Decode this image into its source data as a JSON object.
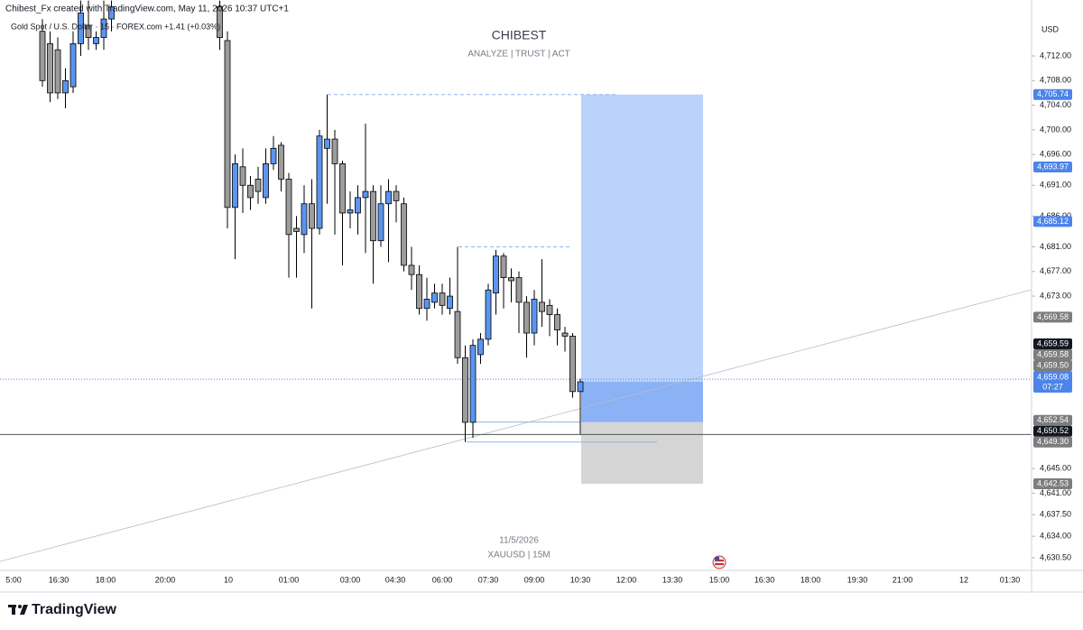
{
  "header": {
    "credit": "Chibest_Fx created with TradingView.com, May 11, 2026 10:37 UTC+1",
    "symbol": "Gold Spot / U.S. Dollar · 15 · FOREX.com  +1.41 (+0.03%)",
    "currency": "USD",
    "brand": "TradingView"
  },
  "chart_data": {
    "type": "candlestick",
    "title": "CHIBEST",
    "subtitle": "ANALYZE | TRUST | ACT",
    "watermark_date": "11/5/2026",
    "watermark_symbol": "XAUUSD | 15M",
    "up_color": "#5b95ef",
    "down_color": "#9c9c9c",
    "ylim": [
      4628.45,
      4721.09
    ],
    "yticks": [
      {
        "value": 4712,
        "label": "4,712.00"
      },
      {
        "value": 4708,
        "label": "4,708.00"
      },
      {
        "value": 4704,
        "label": "4,704.00"
      },
      {
        "value": 4700,
        "label": "4,700.00"
      },
      {
        "value": 4696,
        "label": "4,696.00"
      },
      {
        "value": 4691,
        "label": "4,691.00"
      },
      {
        "value": 4686,
        "label": "4,686.00"
      },
      {
        "value": 4681,
        "label": "4,681.00"
      },
      {
        "value": 4677,
        "label": "4,677.00"
      },
      {
        "value": 4673,
        "label": "4,673.00"
      },
      {
        "value": 4645,
        "label": "4,645.00"
      },
      {
        "value": 4641,
        "label": "4,641.00"
      },
      {
        "value": 4637.5,
        "label": "4,637.50"
      },
      {
        "value": 4634,
        "label": "4,634.00"
      },
      {
        "value": 4630.5,
        "label": "4,630.50"
      }
    ],
    "xticks": [
      "5:00",
      "16:30",
      "18:00",
      "20:00",
      "10",
      "01:00",
      "03:00",
      "04:30",
      "06:00",
      "07:30",
      "09:00",
      "10:30",
      "12:00",
      "13:30",
      "15:00",
      "16:30",
      "18:00",
      "19:30",
      "21:00",
      "12",
      "01:30"
    ],
    "open": [
      4716,
      4714,
      4713,
      4706,
      4707,
      4714,
      4717,
      4714,
      4715,
      4718,
      4720,
      4714.5,
      4687.4,
      4694,
      4691,
      4692,
      4689,
      4694.5,
      4697.5,
      4692,
      4684,
      4683,
      4688,
      4684,
      4697,
      4698.5,
      4694.5,
      4686.5,
      4686.5,
      4689,
      4690,
      4682,
      4688,
      4690,
      4688,
      4678,
      4676.5,
      4671,
      4672,
      4673.5,
      4671,
      4670.5,
      4663,
      4652.5,
      4663.5,
      4666,
      4673.5,
      4679.5,
      4676,
      4676,
      4672,
      4667,
      4672,
      4671.5,
      4670,
      4667,
      4666.5,
      4657.5
    ],
    "high": [
      4718,
      4716,
      4715,
      4710,
      4716,
      4721,
      4721,
      4716,
      4721,
      4721,
      4721,
      4716,
      4696,
      4697,
      4692.5,
      4694,
      4697,
      4699,
      4698,
      4693,
      4686,
      4691,
      4692,
      4700,
      4705.74,
      4700,
      4695,
      4690,
      4691,
      4701,
      4691,
      4691,
      4692,
      4691,
      4689,
      4681,
      4678,
      4676,
      4675,
      4675,
      4676,
      4681,
      4665,
      4666,
      4667,
      4675,
      4680.5,
      4680,
      4677.5,
      4677,
      4673,
      4674,
      4679,
      4672.5,
      4671,
      4668,
      4667,
      4659.59
    ],
    "low": [
      4707,
      4704.5,
      4705,
      4703.5,
      4706,
      4712,
      4713,
      4713,
      4713,
      4716,
      4713,
      4684,
      4679,
      4686.5,
      4687,
      4688,
      4688,
      4693.5,
      4690,
      4676,
      4676,
      4680,
      4671,
      4683,
      4688,
      4683,
      4678,
      4684,
      4683,
      4680,
      4675,
      4681,
      4678.5,
      4685,
      4677,
      4674,
      4670,
      4669,
      4671,
      4670,
      4670,
      4662,
      4649.3,
      4650,
      4662,
      4665,
      4670,
      4671,
      4672,
      4667,
      4663,
      4665,
      4668,
      4666.5,
      4665,
      4664,
      4656.5,
      4650.52
    ],
    "close": [
      4708,
      4706,
      4706,
      4708,
      4714,
      4719,
      4715,
      4715,
      4718,
      4720,
      4715,
      4687.4,
      4694.5,
      4691,
      4689,
      4690,
      4694.5,
      4697,
      4692,
      4683,
      4683.5,
      4688,
      4684,
      4699,
      4698.5,
      4694.5,
      4686.5,
      4687,
      4689,
      4690,
      4682,
      4688,
      4690,
      4688.5,
      4678,
      4676.5,
      4671,
      4672.5,
      4673.5,
      4671.5,
      4673,
      4663,
      4652.5,
      4665,
      4666,
      4674,
      4679.5,
      4676,
      4675.5,
      4672,
      4667,
      4672.5,
      4670.5,
      4670,
      4667.5,
      4666.5,
      4657.5,
      4659.08
    ],
    "price_labels": [
      {
        "value": 4705.74,
        "label": "4,705.74",
        "color": "#4c84ea"
      },
      {
        "value": 4693.97,
        "label": "4,693.97",
        "color": "#4c84ea"
      },
      {
        "value": 4685.12,
        "label": "4,685.12",
        "color": "#4c84ea"
      },
      {
        "value": 4669.58,
        "label": "4,669.58",
        "color": "#7d7d7d"
      },
      {
        "value": 4659.59,
        "label": "4,659.59",
        "color": "#131722"
      },
      {
        "value": 4659.58,
        "label": "4,659.58",
        "color": "#7d7d7d"
      },
      {
        "value": 4659.5,
        "label": "4,659.50",
        "color": "#7d7d7d"
      },
      {
        "value": 4659.08,
        "label": "4,659.08",
        "color": "#4c84ea",
        "sub": "07:27"
      },
      {
        "value": 4652.54,
        "label": "4,652.54",
        "color": "#7d7d7d"
      },
      {
        "value": 4650.52,
        "label": "4,650.52",
        "color": "#131722"
      },
      {
        "value": 4649.3,
        "label": "4,649.30",
        "color": "#7d7d7d"
      },
      {
        "value": 4642.53,
        "label": "4,642.53",
        "color": "#7d7d7d"
      }
    ]
  }
}
